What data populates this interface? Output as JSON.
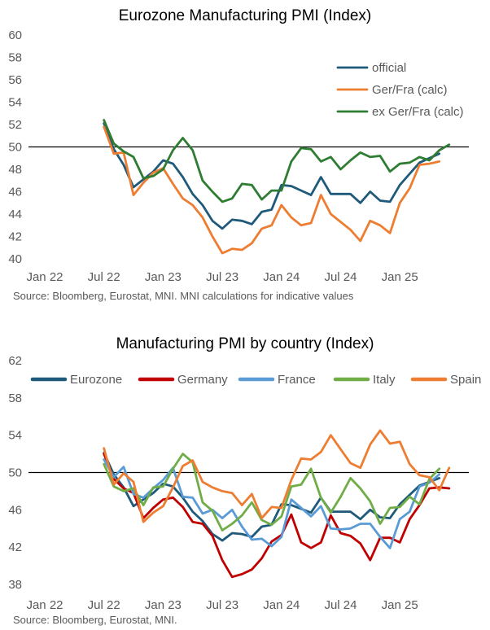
{
  "chart_data": [
    {
      "type": "line",
      "title": "Eurozone Manufacturing PMI (Index)",
      "source": "Source: Bloomberg, Eurostat, MNI.  MNI calculations for indicative values",
      "ylim": [
        40,
        60
      ],
      "yticks": [
        40,
        42,
        44,
        46,
        48,
        50,
        52,
        54,
        56,
        58,
        60
      ],
      "reference_line": 50,
      "x_tick_labels": [
        "Jan 22",
        "Jul 22",
        "Jan 23",
        "Jul 23",
        "Jan 24",
        "Jul 24",
        "Jan 25"
      ],
      "x_tick_index": [
        0,
        6,
        12,
        18,
        24,
        30,
        36
      ],
      "x_count": 44,
      "legend_position": "top-right",
      "series": [
        {
          "name": "official",
          "color": "#1f5a7a",
          "start_index": 6,
          "values": [
            52.1,
            49.8,
            48.4,
            46.4,
            47.1,
            47.8,
            48.8,
            48.5,
            47.3,
            45.8,
            44.8,
            43.4,
            42.7,
            43.5,
            43.4,
            43.1,
            44.2,
            44.4,
            46.6,
            46.5,
            46.1,
            45.7,
            47.3,
            45.8,
            45.8,
            45.8,
            45.0,
            46.0,
            45.2,
            45.1,
            46.6,
            47.6,
            48.6,
            49.0,
            49.4
          ]
        },
        {
          "name": "Ger/Fra (calc)",
          "color": "#ed7d31",
          "start_index": 6,
          "values": [
            51.8,
            49.4,
            49.5,
            45.7,
            46.8,
            47.7,
            48.1,
            46.7,
            45.4,
            44.8,
            43.7,
            42.0,
            40.5,
            40.9,
            40.8,
            41.4,
            42.7,
            43.0,
            44.8,
            43.7,
            43.0,
            43.2,
            45.7,
            44.0,
            43.3,
            42.6,
            41.6,
            43.4,
            43.0,
            42.3,
            45.0,
            46.3,
            48.4,
            48.5,
            48.7
          ]
        },
        {
          "name": "ex Ger/Fra (calc)",
          "color": "#2e7d32",
          "start_index": 6,
          "values": [
            52.4,
            50.3,
            49.6,
            49.1,
            47.2,
            47.4,
            48.0,
            49.7,
            50.8,
            49.7,
            47.0,
            46.0,
            45.1,
            45.4,
            46.7,
            46.6,
            45.3,
            46.1,
            46.1,
            48.7,
            49.9,
            49.8,
            48.7,
            49.1,
            48.0,
            48.8,
            49.5,
            49.1,
            49.2,
            47.8,
            48.5,
            48.6,
            49.1,
            48.8,
            49.7,
            50.2
          ]
        }
      ]
    },
    {
      "type": "line",
      "title": "Manufacturing PMI by country (Index)",
      "source": "Source: Bloomberg, Eurostat, MNI.",
      "ylim": [
        38,
        62
      ],
      "yticks": [
        38,
        42,
        46,
        50,
        54,
        58,
        62
      ],
      "reference_line": 50,
      "x_tick_labels": [
        "Jan 22",
        "Jul 22",
        "Jan 23",
        "Jul 23",
        "Jan 24",
        "Jul 24",
        "Jan 25"
      ],
      "x_tick_index": [
        0,
        6,
        12,
        18,
        24,
        30,
        36
      ],
      "x_count": 44,
      "legend_position": "top",
      "series": [
        {
          "name": "Eurozone",
          "color": "#1f5a7a",
          "start_index": 6,
          "values": [
            52.1,
            49.8,
            48.4,
            46.4,
            47.1,
            47.8,
            48.8,
            48.5,
            47.3,
            45.8,
            44.8,
            43.4,
            42.7,
            43.5,
            43.4,
            43.1,
            44.2,
            44.4,
            46.6,
            46.5,
            46.1,
            45.7,
            47.3,
            45.8,
            45.8,
            45.8,
            45.0,
            46.0,
            45.2,
            45.1,
            46.6,
            47.6,
            48.6,
            49.0,
            49.4
          ]
        },
        {
          "name": "Germany",
          "color": "#c00000",
          "start_index": 6,
          "values": [
            52.0,
            49.3,
            48.3,
            47.8,
            45.1,
            46.2,
            47.1,
            47.3,
            46.3,
            44.7,
            44.5,
            43.2,
            40.6,
            38.8,
            39.1,
            39.6,
            40.8,
            42.6,
            43.3,
            45.5,
            42.5,
            41.9,
            42.5,
            45.4,
            43.5,
            43.2,
            42.4,
            40.6,
            43.0,
            43.0,
            42.5,
            45.0,
            46.5,
            48.3,
            48.4,
            48.3
          ]
        },
        {
          "name": "France",
          "color": "#5b9bd5",
          "start_index": 6,
          "values": [
            51.4,
            49.5,
            50.6,
            47.7,
            47.3,
            48.3,
            49.2,
            50.5,
            47.4,
            47.3,
            45.6,
            46.0,
            45.1,
            46.0,
            44.2,
            42.8,
            42.9,
            42.1,
            43.1,
            47.1,
            46.2,
            45.3,
            46.4,
            44.0,
            43.9,
            44.0,
            44.5,
            44.5,
            43.1,
            41.9,
            45.0,
            45.8,
            48.5,
            48.9,
            49.8
          ]
        },
        {
          "name": "Italy",
          "color": "#70ad47",
          "start_index": 6,
          "values": [
            50.9,
            48.5,
            48.0,
            48.3,
            46.5,
            48.4,
            48.5,
            50.4,
            52.0,
            51.1,
            46.8,
            45.9,
            43.8,
            44.5,
            45.4,
            46.8,
            44.9,
            44.4,
            45.3,
            48.5,
            48.7,
            50.4,
            47.3,
            45.7,
            47.4,
            49.4,
            48.3,
            46.9,
            44.5,
            46.2,
            46.3,
            47.4,
            46.6,
            49.3,
            50.4
          ]
        },
        {
          "name": "Spain",
          "color": "#ed7d31",
          "start_index": 6,
          "values": [
            52.6,
            48.7,
            49.9,
            49.0,
            44.7,
            45.7,
            46.4,
            48.4,
            50.7,
            51.3,
            49.0,
            48.4,
            48.0,
            47.8,
            46.5,
            47.7,
            45.1,
            46.3,
            46.2,
            49.2,
            51.5,
            51.4,
            52.2,
            54.0,
            52.5,
            51.0,
            50.5,
            53.0,
            54.5,
            53.1,
            53.3,
            50.9,
            49.7,
            49.5,
            48.1,
            50.5
          ]
        }
      ]
    }
  ]
}
